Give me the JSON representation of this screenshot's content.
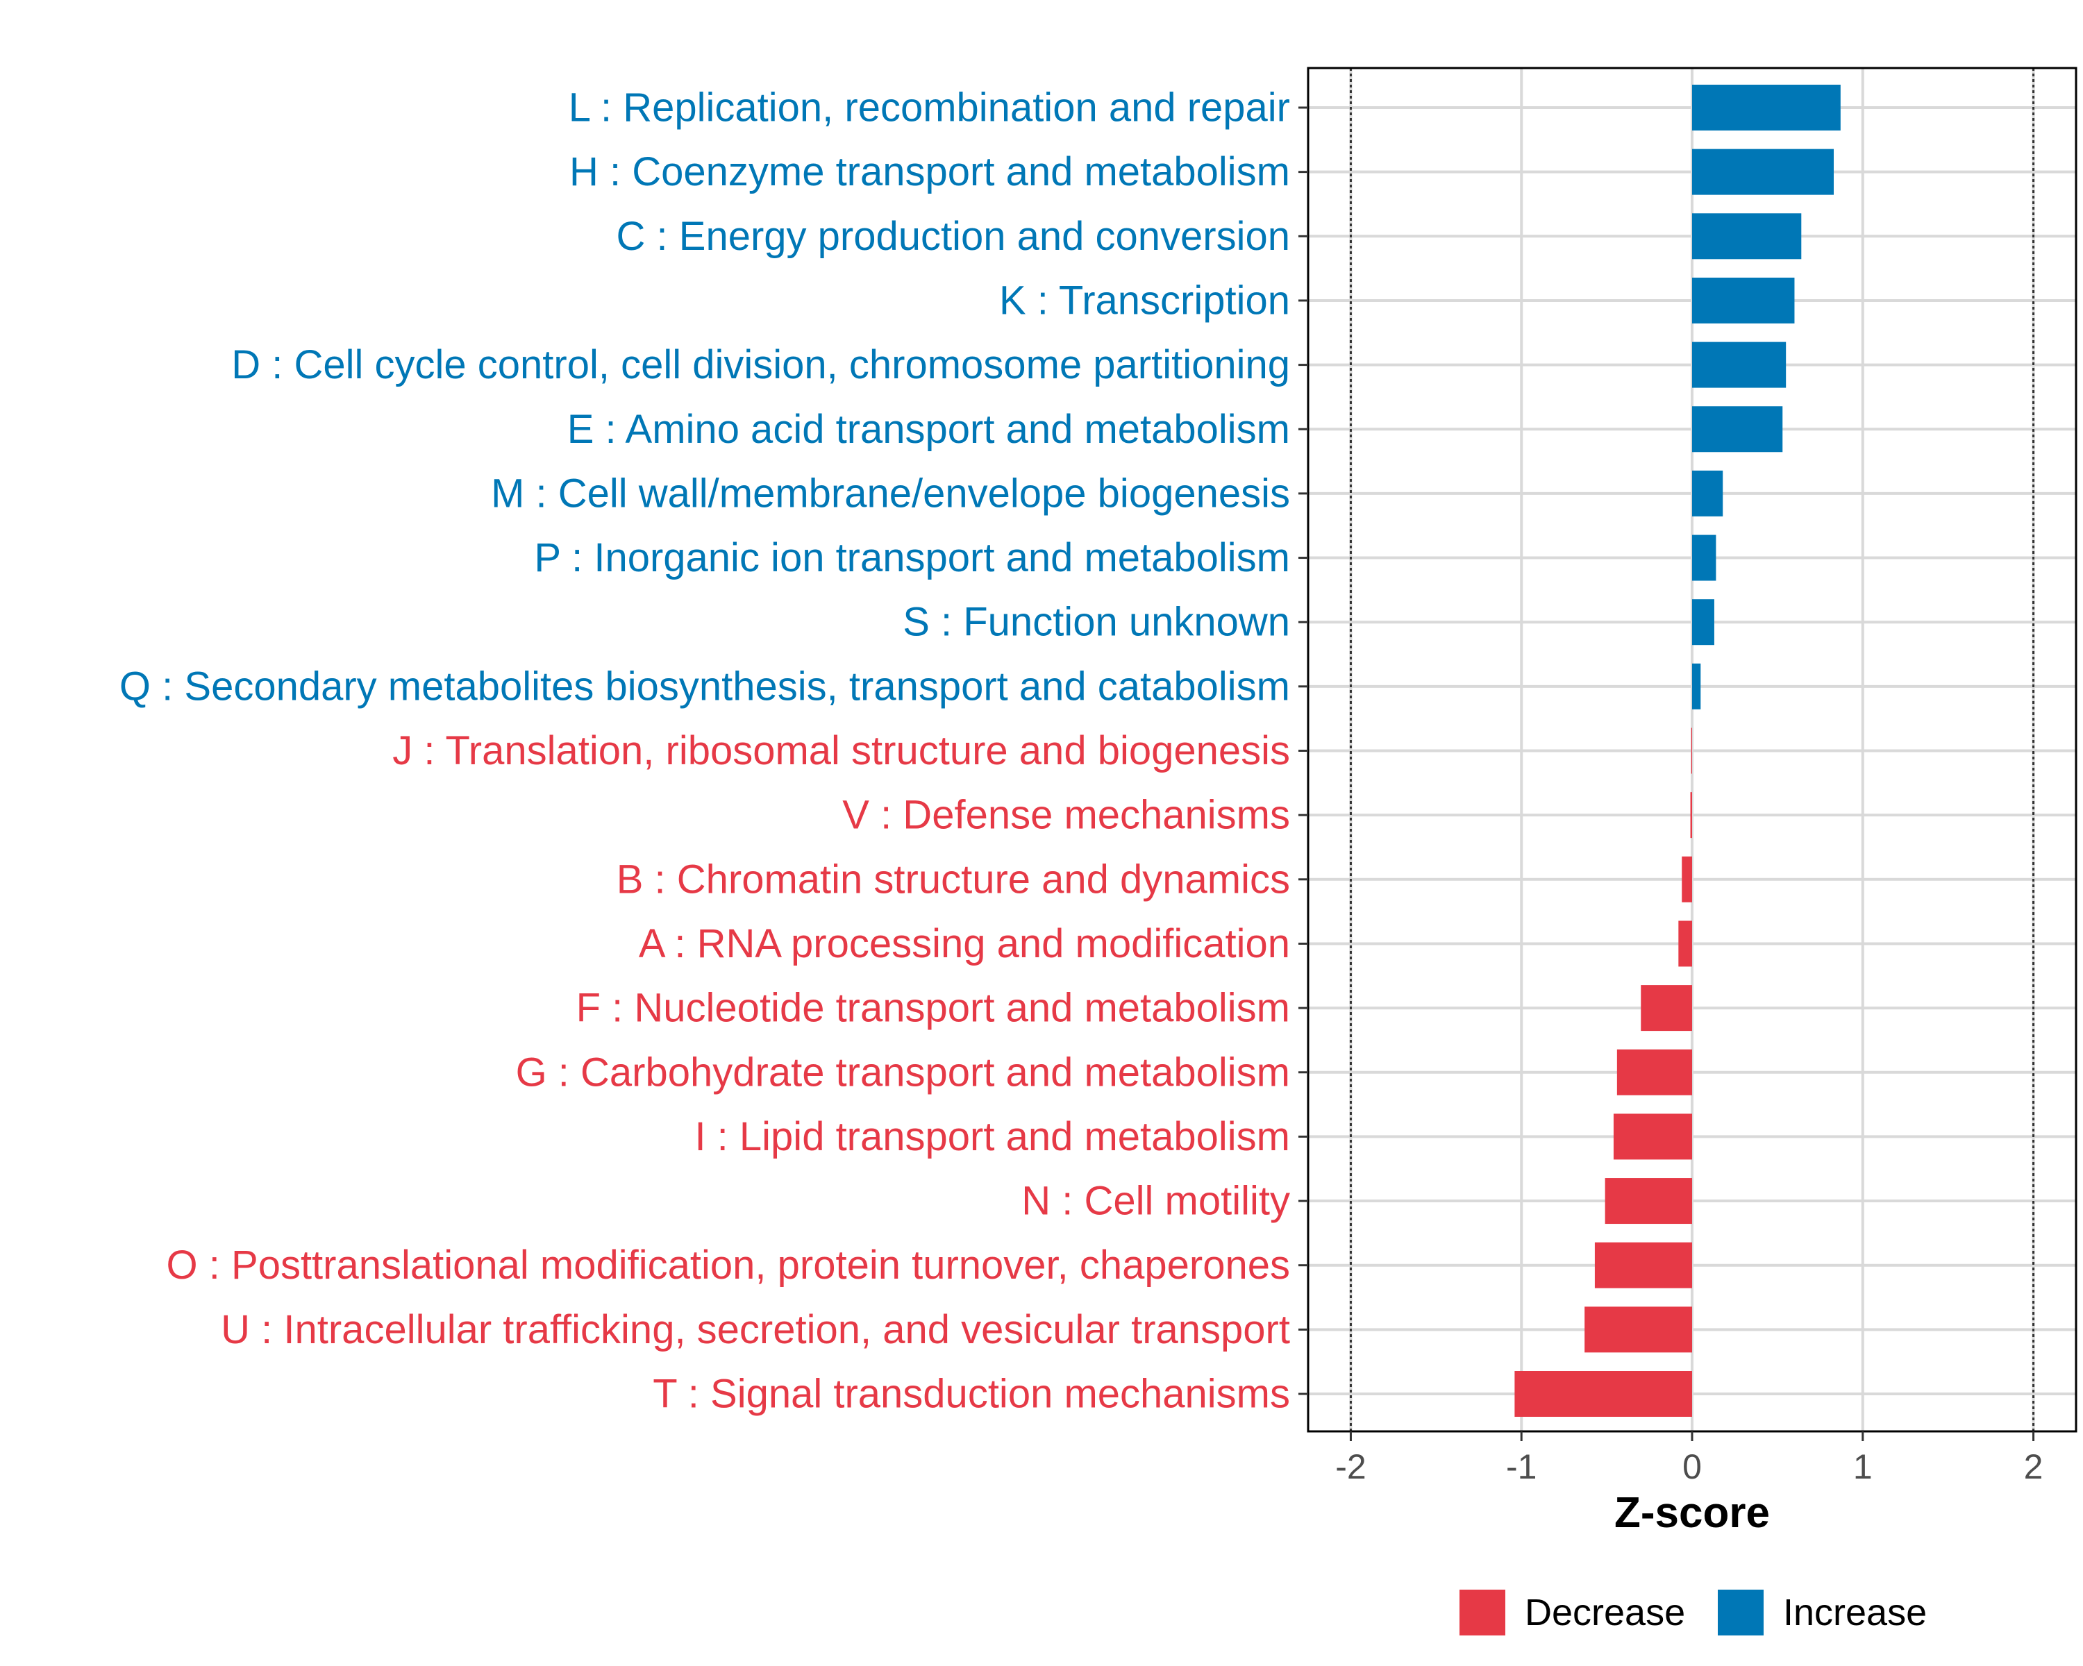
{
  "chart_data": {
    "type": "bar",
    "orientation": "horizontal",
    "xlabel": "Z-score",
    "xlim": [
      -2.25,
      2.25
    ],
    "xticks": [
      -2,
      -1,
      0,
      1,
      2
    ],
    "reference_lines": [
      -2,
      2
    ],
    "colors": {
      "Decrease": "#E63946",
      "Increase": "#0077B6"
    },
    "legend": {
      "placement": "bottom",
      "items": [
        {
          "label": "Decrease",
          "color": "#E63946"
        },
        {
          "label": "Increase",
          "color": "#0077B6"
        }
      ]
    },
    "categories": [
      {
        "label": "L : Replication, recombination and repair",
        "value": 0.87
      },
      {
        "label": "H : Coenzyme transport and metabolism",
        "value": 0.83
      },
      {
        "label": "C : Energy production and conversion",
        "value": 0.64
      },
      {
        "label": "K : Transcription",
        "value": 0.6
      },
      {
        "label": "D : Cell cycle control, cell division, chromosome partitioning",
        "value": 0.55
      },
      {
        "label": "E : Amino acid transport and metabolism",
        "value": 0.53
      },
      {
        "label": "M : Cell wall/membrane/envelope biogenesis",
        "value": 0.18
      },
      {
        "label": "P : Inorganic ion transport and metabolism",
        "value": 0.14
      },
      {
        "label": "S : Function unknown",
        "value": 0.13
      },
      {
        "label": "Q : Secondary metabolites biosynthesis, transport and catabolism",
        "value": 0.05
      },
      {
        "label": "J : Translation, ribosomal structure and biogenesis",
        "value": -0.005
      },
      {
        "label": "V : Defense mechanisms",
        "value": -0.01
      },
      {
        "label": "B : Chromatin structure and dynamics",
        "value": -0.06
      },
      {
        "label": "A : RNA processing and modification",
        "value": -0.08
      },
      {
        "label": "F : Nucleotide transport and metabolism",
        "value": -0.3
      },
      {
        "label": "G : Carbohydrate transport and metabolism",
        "value": -0.44
      },
      {
        "label": "I : Lipid transport and metabolism",
        "value": -0.46
      },
      {
        "label": "N : Cell motility",
        "value": -0.51
      },
      {
        "label": "O : Posttranslational modification, protein turnover, chaperones",
        "value": -0.57
      },
      {
        "label": "U : Intracellular trafficking, secretion, and vesicular transport",
        "value": -0.63
      },
      {
        "label": "T : Signal transduction mechanisms",
        "value": -1.04
      }
    ]
  }
}
